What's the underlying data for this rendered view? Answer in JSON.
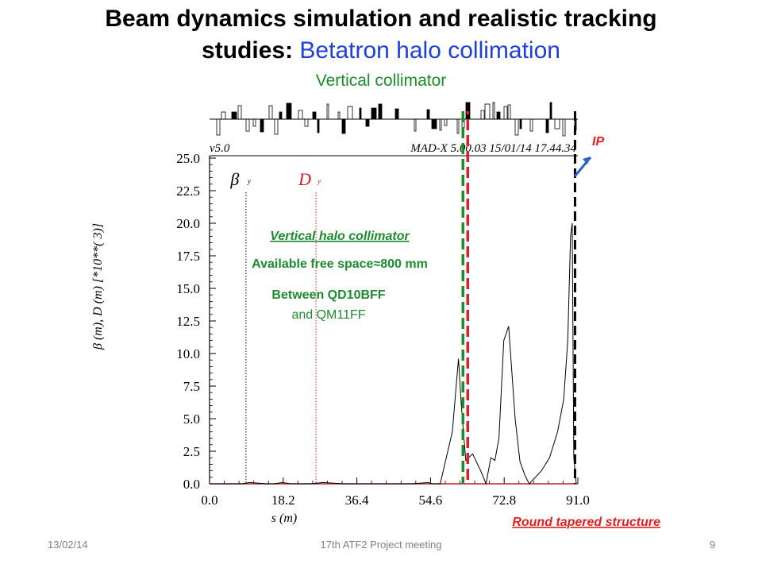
{
  "slide": {
    "title_line1": "Beam dynamics simulation and realistic tracking",
    "title_line2_black": "studies:",
    "title_line2_blue": "Betatron halo collimation",
    "subtitle": "Vertical collimator",
    "footer_date": "13/02/14",
    "footer_meeting": "17th ATF2 Project meeting",
    "footer_page": "9"
  },
  "annotations": {
    "ip_label": "IP",
    "collimator_title": "Vertical halo collimator",
    "free_space": "Available free space≈800 mm",
    "between_line1": "Between QD10BFF",
    "between_line2": "and QM11FF",
    "round_tapered": "Round tapered structure"
  },
  "colors": {
    "title_blue": "#1f3fd6",
    "green": "#1e8a2e",
    "red": "#e02020",
    "beta_line": "#000000",
    "disp_line": "#d02020"
  },
  "chart_data": {
    "type": "line",
    "header_left": "v5.0",
    "header_right": "MAD-X 5.00.03  15/01/14 17.44.34",
    "xlabel": "s (m)",
    "ylabel": "β (m), D (m)    [*10**( 3)]",
    "xlim": [
      0.0,
      91.0
    ],
    "ylim": [
      0.0,
      25.0
    ],
    "x_ticks": [
      "0.0",
      "18.2",
      "36.4",
      "54.6",
      "72.8",
      "91.0"
    ],
    "y_ticks": [
      "0.0",
      "2.5",
      "5.0",
      "7.5",
      "10.0",
      "12.5",
      "15.0",
      "17.5",
      "20.0",
      "22.5",
      "25.0"
    ],
    "legend": [
      {
        "symbol": "β",
        "sub": "y",
        "color": "#000000",
        "x_ref": 9.0
      },
      {
        "symbol": "D",
        "sub": "y",
        "color": "#d02020",
        "x_ref": 26.3
      }
    ],
    "series": [
      {
        "name": "βy",
        "color": "#000000",
        "x": [
          0,
          5,
          8,
          10,
          14,
          16,
          18,
          20,
          25,
          28,
          33,
          50,
          54,
          55,
          57,
          60,
          61.5,
          62.2,
          63.3,
          65,
          67,
          68.3,
          69.5,
          70.5,
          71.5,
          72.7,
          73.9,
          75.5,
          76.7,
          78,
          79,
          82,
          84,
          86,
          87.5,
          88.5,
          89.2,
          89.6,
          90,
          90.6
        ],
        "y": [
          0,
          0,
          0,
          0.1,
          0,
          0,
          0.1,
          0,
          0,
          0.1,
          0,
          0,
          0.1,
          0,
          0,
          4,
          9.6,
          6,
          1.8,
          2.3,
          1,
          0,
          2,
          1.8,
          3.5,
          11,
          12.1,
          5,
          1.7,
          0.6,
          0,
          1,
          2,
          4,
          6.5,
          11,
          19,
          20,
          2,
          0
        ]
      },
      {
        "name": "Dy",
        "color": "#d02020",
        "x": [
          0,
          91
        ],
        "y": [
          0,
          0
        ]
      }
    ],
    "markers": [
      {
        "kind": "collimator",
        "x": 63.2
      },
      {
        "kind": "ip",
        "x": 90.3
      }
    ]
  }
}
